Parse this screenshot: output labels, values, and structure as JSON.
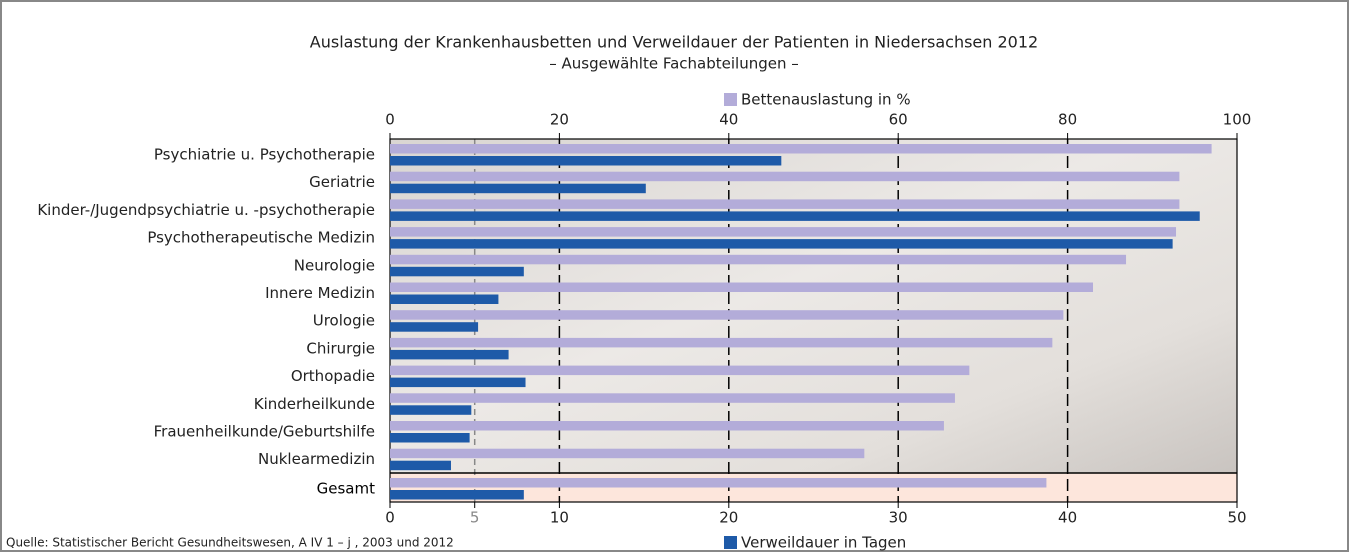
{
  "chart_data": {
    "type": "bar",
    "orientation": "horizontal",
    "title": "Auslastung der Krankenhausbetten und Verweildauer der Patienten in Niedersachsen 2012",
    "subtitle": "– Ausgewählte Fachabteilungen –",
    "source": "Quelle: Statistischer Bericht Gesundheitswesen, A IV 1 – j , 2003 und 2012",
    "categories": [
      "Psychiatrie u. Psychotherapie",
      "Geriatrie",
      "Kinder-/Jugendpsychiatrie u. -psychotherapie",
      "Psychotherapeutische Medizin",
      "Neurologie",
      "Innere Medizin",
      "Urologie",
      "Chirurgie",
      "Orthopadie",
      "Kinderheilkunde",
      "Frauenheilkunde/Geburtshilfe",
      "Nuklearmedizin",
      "Gesamt"
    ],
    "series": [
      {
        "name": "Bettenauslastung in %",
        "color": "#b3acd9",
        "axis": "x",
        "values": [
          97.0,
          93.2,
          93.2,
          92.8,
          86.9,
          83.0,
          79.5,
          78.2,
          68.4,
          66.7,
          65.4,
          56.0,
          77.5
        ]
      },
      {
        "name": "Verweildauer in Tagen",
        "color": "#1e5aa8",
        "axis": "x2",
        "values": [
          23.1,
          15.1,
          47.8,
          46.2,
          7.9,
          6.4,
          5.2,
          7.0,
          8.0,
          4.8,
          4.7,
          3.6,
          7.9
        ]
      }
    ],
    "xlim": [
      0,
      100
    ],
    "xticks": [
      0,
      20,
      40,
      60,
      80,
      100
    ],
    "x2lim": [
      0,
      50
    ],
    "x2ticks": [
      0,
      5,
      10,
      20,
      30,
      40,
      50
    ],
    "grid": true
  }
}
